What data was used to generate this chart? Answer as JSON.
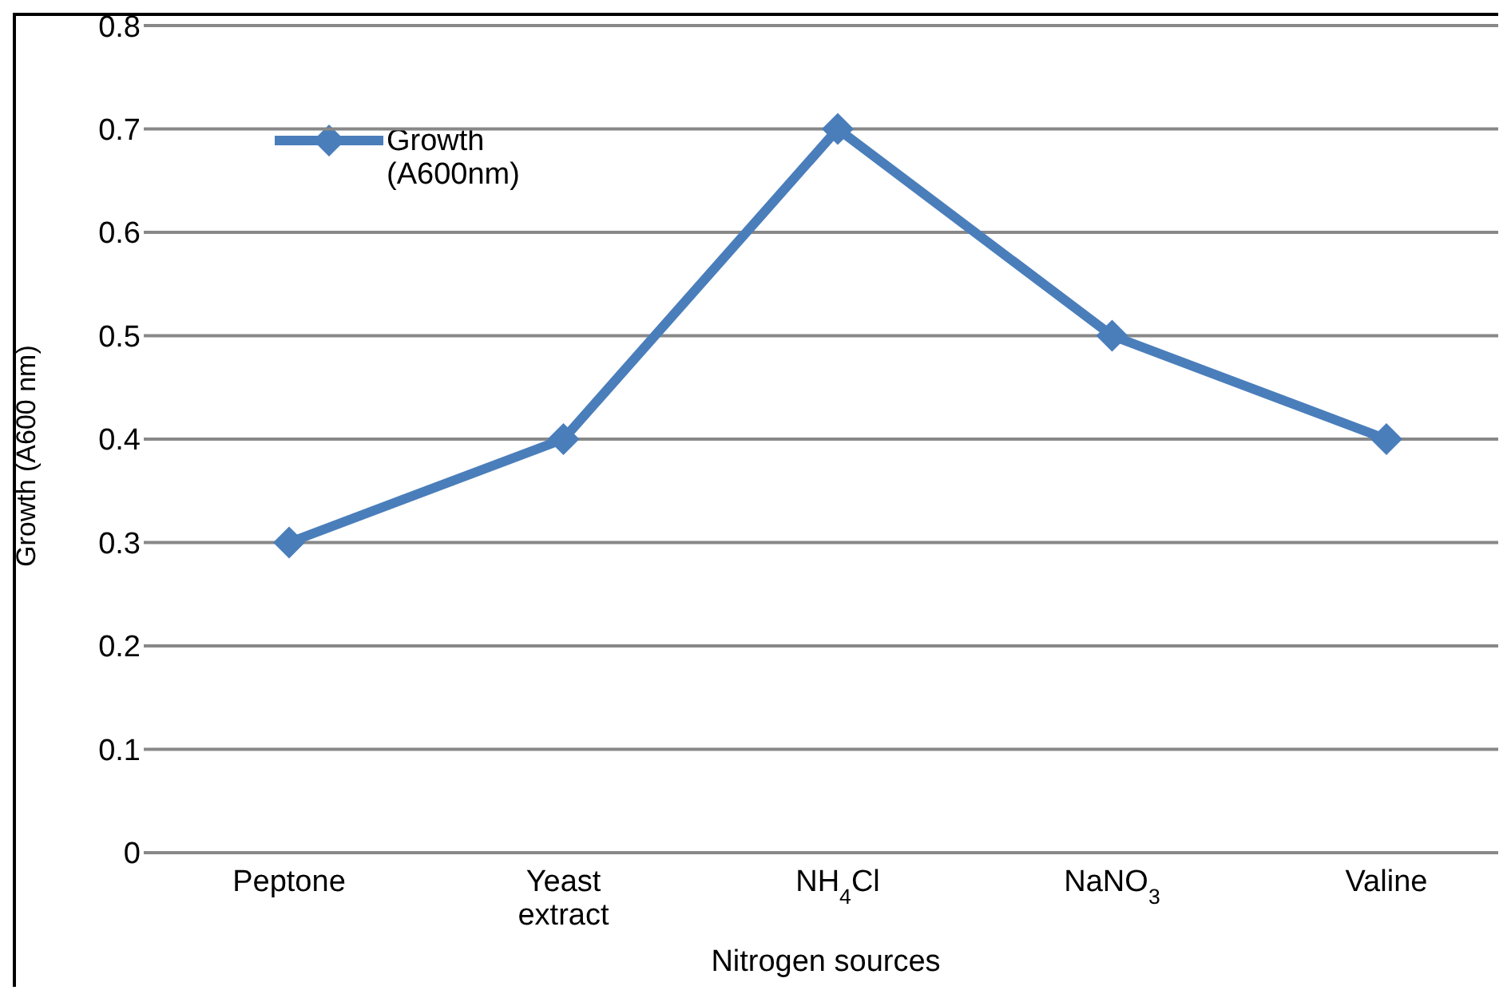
{
  "chart_data": {
    "type": "line",
    "xlabel": "Nitrogen sources",
    "ylabel": "Growth (A600 nm)",
    "categories": [
      "Peptone",
      "Yeast extract",
      "NH$_{4}$Cl",
      "NaNO$_{3}$",
      "Valine"
    ],
    "series": [
      {
        "name": "Growth (A600nm)",
        "color": "#4a7ebb",
        "values": [
          0.3,
          0.4,
          0.7,
          0.5,
          0.4
        ]
      }
    ],
    "ylim": [
      0,
      0.8
    ],
    "yticks": [
      0,
      0.1,
      0.2,
      0.3,
      0.4,
      0.5,
      0.6,
      0.7,
      0.8
    ],
    "grid": "y",
    "legend": "top left",
    "marker": "diamond",
    "line_style": "solid"
  }
}
